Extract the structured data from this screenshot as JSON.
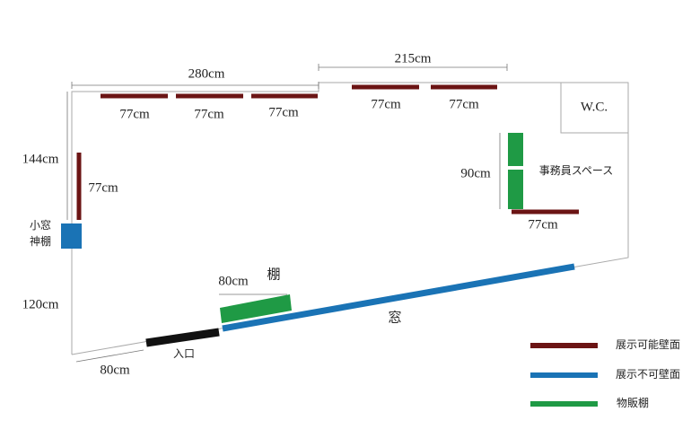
{
  "dimensions": {
    "top_left": "280cm",
    "top_right": "215cm",
    "left_upper": "144cm",
    "left_lower": "120cm",
    "entrance_offset": "80cm",
    "office_wall": "90cm"
  },
  "wall_segments": {
    "top": [
      "77cm",
      "77cm",
      "77cm",
      "77cm",
      "77cm"
    ],
    "left": "77cm",
    "office": "77cm"
  },
  "rooms": {
    "wc": "W.C.",
    "office": "事務員スペース"
  },
  "features": {
    "small_window": "小窓",
    "shrine": "神棚",
    "entrance": "入口",
    "window": "窓",
    "shelf": "棚",
    "shelf_width": "80cm"
  },
  "legend": [
    "展示可能壁面",
    "展示不可壁面",
    "物販棚"
  ]
}
